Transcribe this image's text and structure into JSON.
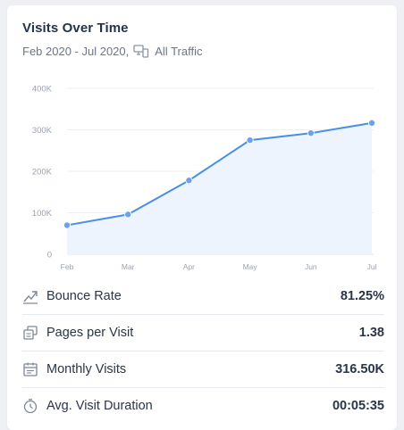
{
  "card": {
    "title": "Visits Over Time",
    "date_range": "Feb 2020 - Jul 2020,",
    "traffic_icon": "devices-icon",
    "traffic_label": "All Traffic"
  },
  "chart_data": {
    "type": "area",
    "categories": [
      "Feb",
      "Mar",
      "Apr",
      "May",
      "Jun",
      "Jul"
    ],
    "series": [
      {
        "values": [
          70000,
          96000,
          178000,
          275000,
          292000,
          316500
        ]
      }
    ],
    "y_ticks": [
      "0",
      "100K",
      "200K",
      "300K",
      "400K"
    ],
    "ylim": [
      0,
      400000
    ],
    "grid": true,
    "colors": {
      "line": "#4a8fe7",
      "fill": "#eef4fd",
      "point": "#6aa3ec"
    }
  },
  "metrics": [
    {
      "icon": "bounce-rate-icon",
      "label": "Bounce Rate",
      "value": "81.25%"
    },
    {
      "icon": "pages-icon",
      "label": "Pages per Visit",
      "value": "1.38"
    },
    {
      "icon": "calendar-icon",
      "label": "Monthly Visits",
      "value": "316.50K"
    },
    {
      "icon": "stopwatch-icon",
      "label": "Avg. Visit Duration",
      "value": "00:05:35"
    }
  ]
}
